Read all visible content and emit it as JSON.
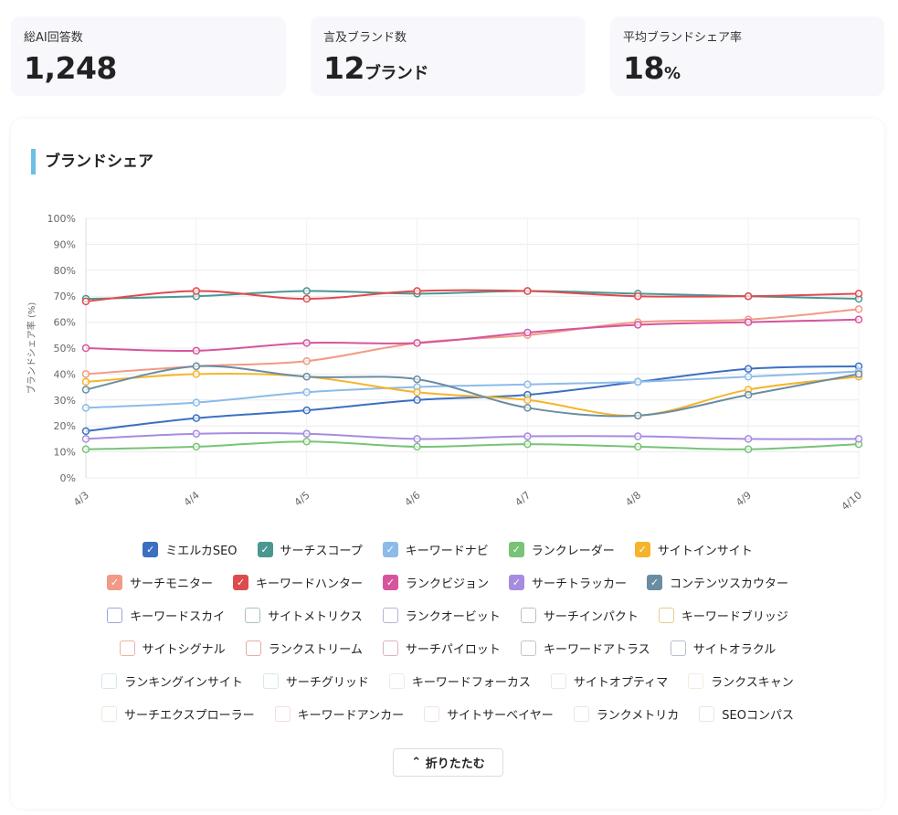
{
  "stats": [
    {
      "label": "総AI回答数",
      "value": "1,248"
    },
    {
      "label": "言及ブランド数",
      "value": "12",
      "unit": "ブランド"
    },
    {
      "label": "平均ブランドシェア率",
      "value": "18",
      "unit": "%"
    }
  ],
  "section_title": "ブランドシェア",
  "button": "折りたたむ",
  "chart_data": {
    "type": "line",
    "y_label": "ブランドシェア率 (%)",
    "categories": [
      "4/3",
      "4/4",
      "4/5",
      "4/6",
      "4/7",
      "4/8",
      "4/9",
      "4/10"
    ],
    "ylim": [
      0,
      100
    ],
    "yticks": [
      {
        "value": 0,
        "label": "0%"
      },
      {
        "value": 10,
        "label": "10%"
      },
      {
        "value": 20,
        "label": "20%"
      },
      {
        "value": 30,
        "label": "30%"
      },
      {
        "value": 40,
        "label": "40%"
      },
      {
        "value": 50,
        "label": "50%"
      },
      {
        "value": 60,
        "label": "60%"
      },
      {
        "value": 70,
        "label": "70%"
      },
      {
        "value": 80,
        "label": "80%"
      },
      {
        "value": 90,
        "label": "90%"
      },
      {
        "value": 100,
        "label": "100%"
      }
    ],
    "grid": true,
    "series": [
      {
        "name": "ミエルカSEO",
        "color": "#3b6fc2",
        "values": [
          18,
          23,
          26,
          30,
          32,
          37,
          42,
          43
        ]
      },
      {
        "name": "サーチスコープ",
        "color": "#4a9792",
        "values": [
          69,
          70,
          72,
          71,
          72,
          71,
          70,
          69
        ]
      },
      {
        "name": "キーワードナビ",
        "color": "#8cbbe9",
        "values": [
          27,
          29,
          33,
          35,
          36,
          37,
          39,
          41
        ]
      },
      {
        "name": "ランクレーダー",
        "color": "#78c377",
        "values": [
          11,
          12,
          14,
          12,
          13,
          12,
          11,
          13
        ]
      },
      {
        "name": "サイトインサイト",
        "color": "#f4b52d",
        "values": [
          37,
          40,
          39,
          33,
          30,
          24,
          34,
          39
        ]
      },
      {
        "name": "サーチモニター",
        "color": "#f29a85",
        "values": [
          40,
          43,
          45,
          52,
          55,
          60,
          61,
          65
        ]
      },
      {
        "name": "キーワードハンター",
        "color": "#de4b4f",
        "values": [
          68,
          72,
          69,
          72,
          72,
          70,
          70,
          71
        ]
      },
      {
        "name": "ランクビジョン",
        "color": "#d6559d",
        "values": [
          50,
          49,
          52,
          52,
          56,
          59,
          60,
          61
        ]
      },
      {
        "name": "サーチトラッカー",
        "color": "#a68ce0",
        "values": [
          15,
          17,
          17,
          15,
          16,
          16,
          15,
          15
        ]
      },
      {
        "name": "コンテンツスカウター",
        "color": "#6a8da2",
        "values": [
          34,
          43,
          39,
          38,
          27,
          24,
          32,
          40
        ]
      }
    ],
    "hidden_series": [
      {
        "name": "キーワードスカイ",
        "color": "#9aa7d8"
      },
      {
        "name": "サイトメトリクス",
        "color": "#a9c3bd"
      },
      {
        "name": "ランクオービット",
        "color": "#b4b4d6"
      },
      {
        "name": "サーチインパクト",
        "color": "#c4bcc8"
      },
      {
        "name": "キーワードブリッジ",
        "color": "#e3cc90"
      },
      {
        "name": "サイトシグナル",
        "color": "#ebb2a6"
      },
      {
        "name": "ランクストリーム",
        "color": "#e6aaa8"
      },
      {
        "name": "サーチパイロット",
        "color": "#dcb3bf"
      },
      {
        "name": "キーワードアトラス",
        "color": "#c7c3c6"
      },
      {
        "name": "サイトオラクル",
        "color": "#b8bfcb"
      },
      {
        "name": "ランキングインサイト",
        "color": "#d4e6f2"
      },
      {
        "name": "サーチグリッド",
        "color": "#d3ebe4"
      },
      {
        "name": "キーワードフォーカス",
        "color": "#e6ecec"
      },
      {
        "name": "サイトオプティマ",
        "color": "#e1eedc"
      },
      {
        "name": "ランクスキャン",
        "color": "#f2ecdd"
      },
      {
        "name": "サーチエクスプローラー",
        "color": "#ece8dc"
      },
      {
        "name": "キーワードアンカー",
        "color": "#f3dcdc"
      },
      {
        "name": "サイトサーベイヤー",
        "color": "#f0e0e4"
      },
      {
        "name": "ランクメトリカ",
        "color": "#e4e6ee"
      },
      {
        "name": "SEOコンパス",
        "color": "#e6e6e6"
      }
    ]
  }
}
